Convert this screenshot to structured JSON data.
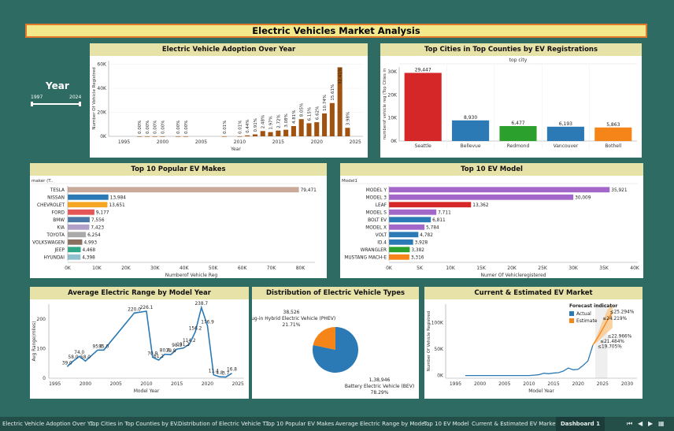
{
  "dashboard_title": "Electric Vehicles Market  Analysis",
  "year_filter": {
    "label": "Year",
    "min": "1997",
    "max": "2024"
  },
  "panels": {
    "adoption": "Electric Vehicle Adoption Over Year",
    "cities": "Top Cities in Top Counties by EV Registrations",
    "makes": "Top 10 Popular EV Makes",
    "models": "Top 10 EV Model",
    "range": "Average Electric Range by Model Year",
    "types": "Distribution of Electric Vehicle Types",
    "forecast": "Current & Estimated EV Market"
  },
  "tabs": [
    "Electric Vehicle Adoption Over Y...",
    "Top Cities in Top Counties by EV...",
    "Distribution of Electric Vehicle T...",
    "Top 10 Popular EV Makes",
    "Average Electric Range by Mode...",
    "Top 10 EV Model",
    "Current & Estimated EV Market",
    "Dashboard 1"
  ],
  "colors": {
    "background": "#2e6b62",
    "title_bg": "#e7e2a8",
    "brown": "#a0520e",
    "blue": "#2b79b5",
    "orange": "#f58518"
  },
  "chart_data": [
    {
      "id": "adoption",
      "type": "bar",
      "title": "Electric Vehicle Adoption Over Year",
      "xlabel": "Year",
      "ylabel": "Number Of Vehicle Registred",
      "xlim": [
        1993,
        2026
      ],
      "ylim": [
        0,
        63000
      ],
      "yticks": [
        0,
        20000,
        40000,
        60000
      ],
      "ytick_labels": [
        "0K",
        "20K",
        "40K",
        "60K"
      ],
      "xticks": [
        1995,
        2000,
        2005,
        2010,
        2015,
        2020,
        2025
      ],
      "points": [
        {
          "x": 1997,
          "y": 1,
          "label": "0.00%"
        },
        {
          "x": 1998,
          "y": 1,
          "label": "0.00%"
        },
        {
          "x": 1999,
          "y": 5,
          "label": "0.00%"
        },
        {
          "x": 2000,
          "y": 7,
          "label": "0.00%"
        },
        {
          "x": 2002,
          "y": 2,
          "label": "0.00%"
        },
        {
          "x": 2003,
          "y": 1,
          "label": "0.00%"
        },
        {
          "x": 2008,
          "y": 20,
          "label": "0.01%"
        },
        {
          "x": 2010,
          "y": 23,
          "label": "0.01%"
        },
        {
          "x": 2011,
          "y": 770,
          "label": "0.44%"
        },
        {
          "x": 2012,
          "y": 1614,
          "label": "0.91%"
        },
        {
          "x": 2013,
          "y": 4400,
          "label": "2.48%"
        },
        {
          "x": 2014,
          "y": 3500,
          "label": "1.97%"
        },
        {
          "x": 2015,
          "y": 4800,
          "label": "2.72%"
        },
        {
          "x": 2016,
          "y": 5470,
          "label": "3.08%"
        },
        {
          "x": 2017,
          "y": 8530,
          "label": "4.81%"
        },
        {
          "x": 2018,
          "y": 14300,
          "label": "8.05%"
        },
        {
          "x": 2019,
          "y": 10900,
          "label": "6.15%"
        },
        {
          "x": 2020,
          "y": 11740,
          "label": "6.62%"
        },
        {
          "x": 2021,
          "y": 19060,
          "label": "10.74%"
        },
        {
          "x": 2022,
          "y": 27700,
          "label": "15.61%"
        },
        {
          "x": 2023,
          "y": 57500,
          "label": "32.41%"
        },
        {
          "x": 2024,
          "y": 7070,
          "label": "3.98%"
        }
      ]
    },
    {
      "id": "cities",
      "type": "bar",
      "title": "Top Cities in Top Counties by EV Registrations",
      "header": "top city",
      "ylabel": "numberof vehicle reg (Top Cities in",
      "ylim": [
        0,
        32000
      ],
      "yticks": [
        0,
        10000,
        20000,
        30000
      ],
      "ytick_labels": [
        "0K",
        "10K",
        "20K",
        "30K"
      ],
      "categories": [
        "Seattle",
        "Bellevue",
        "Redmond",
        "Vancouver",
        "Bothell"
      ],
      "values": [
        29447,
        8930,
        6477,
        6193,
        5863
      ],
      "value_labels": [
        "29,447",
        "8,930",
        "6,477",
        "6,193",
        "5,863"
      ],
      "colors": [
        "#d62728",
        "#2b79b5",
        "#2ca02c",
        "#2b79b5",
        "#f58518"
      ]
    },
    {
      "id": "makes",
      "type": "bar",
      "orientation": "horizontal",
      "title": "Top 10 Popular EV Makes",
      "header": "maker (T..",
      "xlabel": "Numberof Vehicle Reg",
      "xlim": [
        0,
        85000
      ],
      "xticks": [
        0,
        10000,
        20000,
        30000,
        40000,
        50000,
        60000,
        70000,
        80000
      ],
      "xtick_labels": [
        "0K",
        "10K",
        "20K",
        "30K",
        "40K",
        "50K",
        "60K",
        "70K",
        "80K"
      ],
      "categories": [
        "TESLA",
        "NISSAN",
        "CHEVROLET",
        "FORD",
        "BMW",
        "KIA",
        "TOYOTA",
        "VOLKSWAGEN",
        "JEEP",
        "HYUNDAI"
      ],
      "values": [
        79471,
        13984,
        13651,
        9177,
        7556,
        7423,
        6254,
        4993,
        4468,
        4398
      ],
      "value_labels": [
        "79,471",
        "13,984",
        "13,651",
        "9,177",
        "7,556",
        "7,423",
        "6,254",
        "4,993",
        "4,468",
        "4,398"
      ],
      "colors": [
        "#c9aa9a",
        "#2b79b5",
        "#f5a623",
        "#e45756",
        "#4c78a8",
        "#b0a0c8",
        "#aaaaaa",
        "#8a7060",
        "#2fa88a",
        "#8ec0cf"
      ]
    },
    {
      "id": "models",
      "type": "bar",
      "orientation": "horizontal",
      "title": "Top 10 EV Model",
      "header": "Model1",
      "xlabel": "Numer Of Vehicleregistered",
      "xlim": [
        0,
        40500
      ],
      "xticks": [
        0,
        5000,
        10000,
        15000,
        20000,
        25000,
        30000,
        35000,
        40000
      ],
      "xtick_labels": [
        "0K",
        "5K",
        "10K",
        "15K",
        "20K",
        "25K",
        "30K",
        "35K",
        "40K"
      ],
      "categories": [
        "MODEL Y",
        "MODEL 3",
        "LEAF",
        "MODEL S",
        "BOLT EV",
        "MODEL X",
        "VOLT",
        "ID.4",
        "WRANGLER",
        "MUSTANG MACH-E"
      ],
      "values": [
        35921,
        30009,
        13362,
        7711,
        6811,
        5784,
        4782,
        3928,
        3382,
        3316
      ],
      "value_labels": [
        "35,921",
        "30,009",
        "13,362",
        "7,711",
        "6,811",
        "5,784",
        "4,782",
        "3,928",
        "3,382",
        "3,316"
      ],
      "colors": [
        "#a366c9",
        "#a366c9",
        "#d62728",
        "#a366c9",
        "#2b79b5",
        "#a366c9",
        "#2b79b5",
        "#2b79b5",
        "#2ca02c",
        "#f58518"
      ]
    },
    {
      "id": "range",
      "type": "line",
      "title": "Average Electric Range by Model Year",
      "xlabel": "Model Year",
      "ylabel": "Avg Range(miles)",
      "xlim": [
        1994,
        2026
      ],
      "ylim": [
        0,
        250
      ],
      "yticks": [
        0,
        100,
        200
      ],
      "xticks": [
        1995,
        2000,
        2005,
        2010,
        2015,
        2020,
        2025
      ],
      "x": [
        1997,
        1998,
        1999,
        2000,
        2002,
        2003,
        2008,
        2010,
        2011,
        2012,
        2013,
        2014,
        2015,
        2016,
        2017,
        2018,
        2019,
        2020,
        2021,
        2022,
        2023,
        2024
      ],
      "y": [
        39.0,
        58.0,
        74.0,
        58.0,
        95.0,
        95.0,
        220.0,
        226.1,
        70.9,
        61.2,
        80.8,
        79.8,
        98.3,
        101.2,
        114.2,
        156.2,
        238.7,
        176.9,
        11.4,
        4.8,
        3.7,
        16.8
      ],
      "labels": [
        "39.0",
        "58.0",
        "74.0",
        "58.0",
        "95.0",
        "95.0",
        "220.0",
        "226.1",
        "70.9",
        "61.2",
        "80.8",
        "79.8",
        "98.3",
        "101.2",
        "114.2",
        "156.2",
        "238.7",
        "176.9",
        "11.4",
        "4.8",
        "3.7",
        "16.8"
      ]
    },
    {
      "id": "types",
      "type": "pie",
      "title": "Distribution of Electric Vehicle Types",
      "slices": [
        {
          "label": "Battery Electric Vehicle (BEV)",
          "value": 138946,
          "value_label": "1,38,946",
          "pct": "78.29%",
          "color": "#2b79b5"
        },
        {
          "label": "Plug-in Hybrid Electric Vehicle (PHEV)",
          "value": 38526,
          "value_label": "38,526",
          "pct": "21.71%",
          "color": "#f58518"
        }
      ]
    },
    {
      "id": "forecast",
      "type": "line",
      "title": "Current & Estimated EV Market",
      "xlabel": "Model Year",
      "ylabel": "Number Of Vehicle Registred",
      "xlim": [
        1993,
        2032
      ],
      "ylim": [
        -5000,
        135000
      ],
      "yticks": [
        0,
        50000,
        100000
      ],
      "ytick_labels": [
        "0K",
        "50K",
        "100K"
      ],
      "xticks": [
        1995,
        2000,
        2005,
        2010,
        2015,
        2020,
        2025,
        2030
      ],
      "legend": {
        "title": "Forecast indicator",
        "items": [
          {
            "label": "Actual",
            "color": "#2b79b5"
          },
          {
            "label": "Estimate",
            "color": "#f58518"
          }
        ]
      },
      "actual": [
        [
          1997,
          1
        ],
        [
          1998,
          1
        ],
        [
          1999,
          5
        ],
        [
          2000,
          7
        ],
        [
          2002,
          2
        ],
        [
          2003,
          1
        ],
        [
          2008,
          20
        ],
        [
          2010,
          23
        ],
        [
          2011,
          770
        ],
        [
          2012,
          1614
        ],
        [
          2013,
          4400
        ],
        [
          2014,
          3500
        ],
        [
          2015,
          4800
        ],
        [
          2016,
          5470
        ],
        [
          2017,
          8530
        ],
        [
          2018,
          14300
        ],
        [
          2019,
          10900
        ],
        [
          2020,
          11740
        ],
        [
          2021,
          19060
        ],
        [
          2022,
          27700
        ],
        [
          2023,
          57500
        ]
      ],
      "estimate": [
        [
          2023,
          57500
        ],
        [
          2024,
          72000
        ],
        [
          2025,
          88000
        ],
        [
          2026,
          105000
        ],
        [
          2027,
          120000
        ]
      ],
      "estimate_band": [
        [
          2023,
          57500,
          57500
        ],
        [
          2024,
          64000,
          80000
        ],
        [
          2025,
          73000,
          103000
        ],
        [
          2026,
          82000,
          125000
        ],
        [
          2027,
          90000,
          135000
        ]
      ],
      "annotations": [
        {
          "x": 2025,
          "y": 105000,
          "text": "≤24.219%"
        },
        {
          "x": 2026.5,
          "y": 118000,
          "text": "≤25.294%"
        },
        {
          "x": 2026,
          "y": 72000,
          "text": "≤22.966%"
        },
        {
          "x": 2024.5,
          "y": 62000,
          "text": "≤21.484%"
        },
        {
          "x": 2024,
          "y": 52000,
          "text": "≤19.705%"
        }
      ]
    }
  ]
}
